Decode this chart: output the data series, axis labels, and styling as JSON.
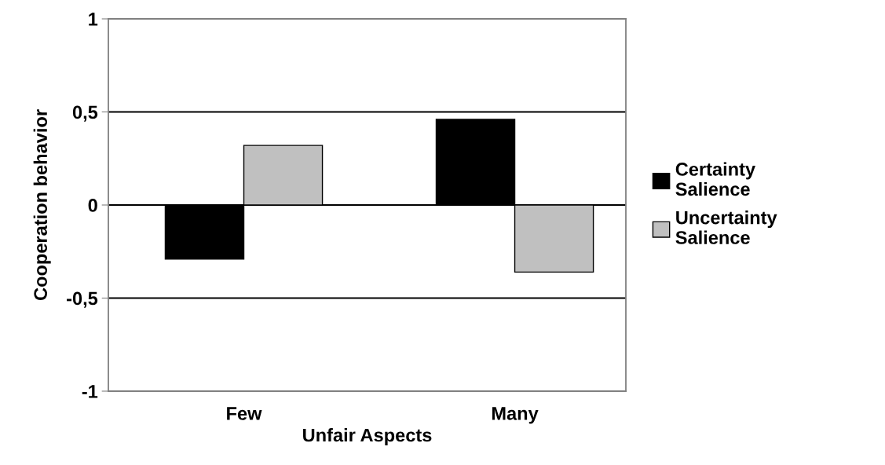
{
  "chart_data": {
    "type": "bar",
    "xlabel": "Unfair Aspects",
    "ylabel": "Cooperation behavior",
    "categories": [
      "Few",
      "Many"
    ],
    "series": [
      {
        "name": "Certainty\nSalience",
        "color": "#000000",
        "values": [
          -0.29,
          0.46
        ]
      },
      {
        "name": "Uncertainty\nSalience",
        "color": "#c0c0c0",
        "values": [
          0.32,
          -0.36
        ]
      }
    ],
    "ylim": [
      -1,
      1
    ],
    "yticks": [
      {
        "value": -1,
        "label": "-1"
      },
      {
        "value": -0.5,
        "label": "-0,5"
      },
      0,
      {
        "value": 0.5,
        "label": "0,5"
      },
      1
    ],
    "grid": "y",
    "legend": "right"
  }
}
